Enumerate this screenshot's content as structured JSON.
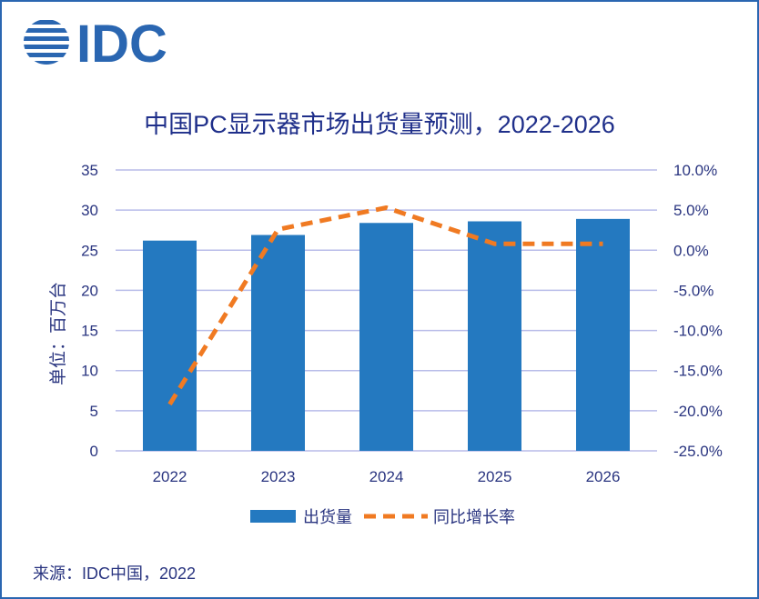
{
  "brand": {
    "logo_text": "IDC",
    "logo_color": "#2a66b1"
  },
  "source": "来源：IDC中国，2022",
  "chart_data": {
    "type": "bar",
    "title": "中国PC显示器市场出货量预测，2022-2026",
    "ylabel": "单位：百万台",
    "categories": [
      "2022",
      "2023",
      "2024",
      "2025",
      "2026"
    ],
    "series": [
      {
        "name": "出货量",
        "type": "bar",
        "axis": "left",
        "color": "#2479c0",
        "values": [
          26.2,
          26.9,
          28.4,
          28.6,
          28.9
        ]
      },
      {
        "name": "同比增长率",
        "type": "line",
        "axis": "right",
        "style": "dashed",
        "color": "#f07a22",
        "values": [
          -19.2,
          2.6,
          5.3,
          0.8,
          0.8
        ]
      }
    ],
    "ylim_left": [
      0,
      35
    ],
    "yticks_left": [
      "0",
      "5",
      "10",
      "15",
      "20",
      "25",
      "30",
      "35"
    ],
    "ylim_right": [
      -25,
      10
    ],
    "yticks_right": [
      "-25.0%",
      "-20.0%",
      "-15.0%",
      "-10.0%",
      "-5.0%",
      "0.0%",
      "5.0%",
      "10.0%"
    ],
    "grid": true,
    "legend": "bottom",
    "gridline_color": "#b8bce9",
    "text_color": "#2a3580"
  }
}
